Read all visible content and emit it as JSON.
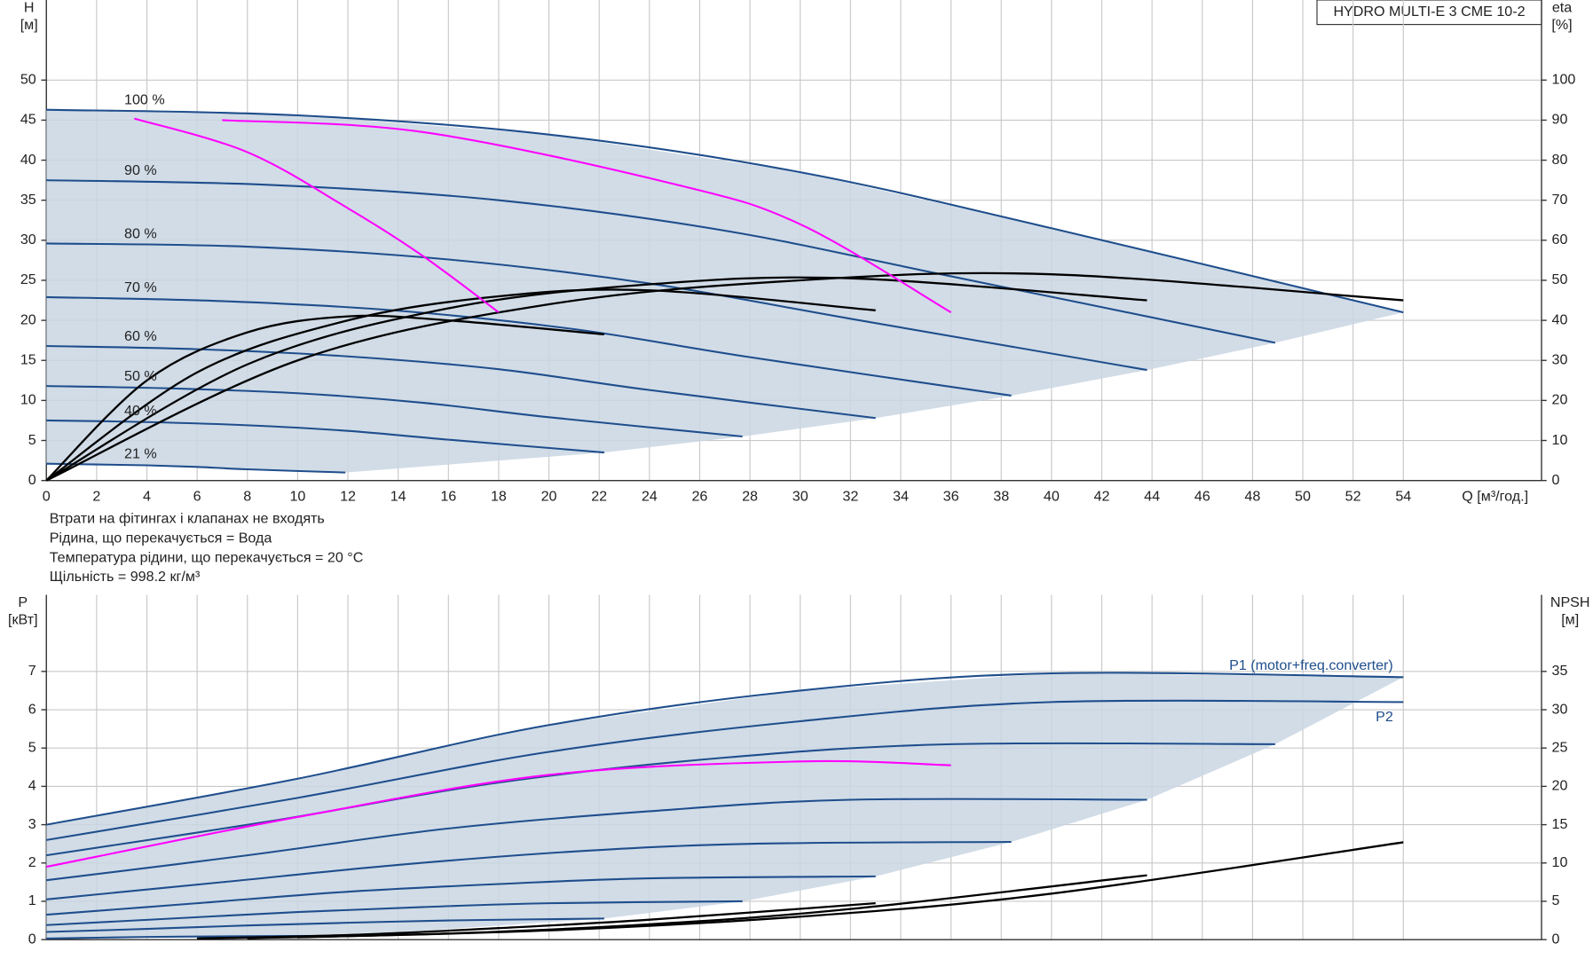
{
  "chart_data": [
    {
      "type": "line",
      "title": "HYDRO MULTI-E 3 CME 10-2",
      "ylabel": [
        "H",
        "[м]"
      ],
      "y2label": [
        "eta",
        "[%]"
      ],
      "xlabel": "Q [м³/год.]",
      "xlim": [
        0,
        59.5
      ],
      "ylim": [
        0,
        60
      ],
      "y2lim": [
        0,
        120
      ],
      "grid": true,
      "xticks": [
        0,
        2,
        4,
        6,
        8,
        10,
        12,
        14,
        16,
        18,
        20,
        22,
        24,
        26,
        28,
        30,
        32,
        34,
        36,
        38,
        40,
        42,
        44,
        46,
        48,
        50,
        52,
        54
      ],
      "yticks": [
        0,
        5,
        10,
        15,
        20,
        25,
        30,
        35,
        40,
        45,
        50
      ],
      "y2ticks": [
        0,
        10,
        20,
        30,
        40,
        50,
        60,
        70,
        80,
        90,
        100
      ],
      "series": [
        {
          "name": "100 %",
          "color": "#1f4e8c",
          "x": [
            0,
            10,
            20,
            30,
            40,
            54
          ],
          "values": [
            46.3,
            45.6,
            43.2,
            38.5,
            31.5,
            21.0
          ]
        },
        {
          "name": "90 %",
          "color": "#1f4e8c",
          "x": [
            0,
            9,
            18,
            27,
            36,
            48.9
          ],
          "values": [
            37.5,
            36.9,
            35.0,
            31.2,
            25.5,
            17.2
          ]
        },
        {
          "name": "80 %",
          "color": "#1f4e8c",
          "x": [
            0,
            8,
            16,
            24,
            32,
            43.8
          ],
          "values": [
            29.6,
            29.2,
            27.6,
            24.6,
            20.2,
            13.8
          ]
        },
        {
          "name": "70 %",
          "color": "#1f4e8c",
          "x": [
            0,
            7,
            14,
            21,
            28,
            38.4
          ],
          "values": [
            22.9,
            22.4,
            21.2,
            18.9,
            15.4,
            10.6
          ]
        },
        {
          "name": "60 %",
          "color": "#1f4e8c",
          "x": [
            0,
            6,
            12,
            18,
            24,
            33
          ],
          "values": [
            16.8,
            16.4,
            15.5,
            13.9,
            11.3,
            7.8
          ]
        },
        {
          "name": "50 %",
          "color": "#1f4e8c",
          "x": [
            0,
            5,
            10,
            15,
            20,
            27.7
          ],
          "values": [
            11.8,
            11.5,
            10.9,
            9.7,
            7.9,
            5.5
          ]
        },
        {
          "name": "40 %",
          "color": "#1f4e8c",
          "x": [
            0,
            4,
            8,
            12,
            16,
            22.2
          ],
          "values": [
            7.5,
            7.3,
            6.9,
            6.2,
            5.1,
            3.5
          ]
        },
        {
          "name": "21 %",
          "color": "#1f4e8c",
          "x": [
            0,
            2,
            4,
            6,
            8,
            11.9
          ],
          "values": [
            2.1,
            2.0,
            1.9,
            1.7,
            1.4,
            1.0
          ]
        },
        {
          "color": "#000000",
          "axis": "y2",
          "x": [
            0,
            10,
            20,
            30,
            40,
            54
          ],
          "values": [
            0,
            30,
            44,
            50,
            51.5,
            45
          ]
        },
        {
          "color": "#000000",
          "axis": "y2",
          "x": [
            0,
            8,
            16,
            24,
            32,
            43.8
          ],
          "values": [
            0,
            29,
            43,
            49,
            50.5,
            45
          ]
        },
        {
          "color": "#000000",
          "axis": "y2",
          "x": [
            0,
            6,
            12,
            18,
            24,
            33
          ],
          "values": [
            0,
            27,
            40,
            46,
            47.5,
            42.5
          ]
        },
        {
          "color": "#000000",
          "axis": "y2",
          "x": [
            0,
            4,
            8,
            12,
            16,
            22.2
          ],
          "values": [
            0,
            25,
            37,
            41,
            40,
            36.5
          ]
        },
        {
          "color": "#ff00ff",
          "x": [
            3.5,
            8,
            12,
            15,
            18
          ],
          "values": [
            45.2,
            41,
            34,
            28,
            21
          ]
        },
        {
          "color": "#ff00ff",
          "x": [
            7,
            15,
            25,
            30,
            36
          ],
          "values": [
            45,
            43.5,
            37,
            32,
            21
          ]
        }
      ]
    },
    {
      "type": "line",
      "notes": [
        "Втрати на фітингах і клапанах не входять",
        "Рідина, що перекачується = Вода",
        "Температура рідини, що перекачується = 20 °C",
        "Щільність = 998.2 кг/м³"
      ],
      "ylabel": [
        "P",
        "[кВт]"
      ],
      "y2label": [
        "NPSH",
        "[м]"
      ],
      "xlim": [
        0,
        59.5
      ],
      "ylim": [
        0,
        9
      ],
      "y2lim": [
        0,
        45
      ],
      "grid": true,
      "yticks": [
        0,
        1,
        2,
        3,
        4,
        5,
        6,
        7
      ],
      "y2ticks": [
        0,
        5,
        10,
        15,
        20,
        25,
        30,
        35
      ],
      "series": [
        {
          "name": "P1 (motor+freq.converter)",
          "color": "#1f4e8c",
          "x": [
            0,
            10,
            20,
            30,
            40,
            54
          ],
          "values": [
            3.0,
            4.2,
            5.6,
            6.5,
            6.95,
            6.85
          ]
        },
        {
          "name": "P2",
          "color": "#1f4e8c",
          "x": [
            0,
            10,
            20,
            30,
            40,
            54
          ],
          "values": [
            2.6,
            3.7,
            4.9,
            5.7,
            6.2,
            6.2
          ]
        },
        {
          "color": "#1f4e8c",
          "x": [
            0,
            9,
            18,
            27,
            36,
            48.9
          ],
          "values": [
            2.2,
            3.1,
            4.1,
            4.75,
            5.1,
            5.1
          ]
        },
        {
          "color": "#1f4e8c",
          "x": [
            0,
            8,
            16,
            24,
            32,
            43.8
          ],
          "values": [
            1.55,
            2.2,
            2.9,
            3.35,
            3.65,
            3.65
          ]
        },
        {
          "color": "#1f4e8c",
          "x": [
            0,
            7,
            14,
            21,
            28,
            38.4
          ],
          "values": [
            1.05,
            1.5,
            1.95,
            2.3,
            2.5,
            2.55
          ]
        },
        {
          "color": "#1f4e8c",
          "x": [
            0,
            6,
            12,
            18,
            24,
            33
          ],
          "values": [
            0.65,
            0.95,
            1.25,
            1.45,
            1.6,
            1.65
          ]
        },
        {
          "color": "#1f4e8c",
          "x": [
            0,
            5,
            10,
            15,
            20,
            27.7
          ],
          "values": [
            0.38,
            0.55,
            0.72,
            0.85,
            0.95,
            1.0
          ]
        },
        {
          "color": "#1f4e8c",
          "x": [
            0,
            4,
            8,
            12,
            16,
            22.2
          ],
          "values": [
            0.2,
            0.28,
            0.37,
            0.44,
            0.5,
            0.55
          ]
        },
        {
          "color": "#1f4e8c",
          "x": [
            0,
            2,
            4,
            6,
            8,
            11.9
          ],
          "values": [
            0.03,
            0.05,
            0.07,
            0.08,
            0.09,
            0.1
          ]
        },
        {
          "color": "#ff00ff",
          "x": [
            0,
            10,
            20,
            30,
            36
          ],
          "values": [
            1.9,
            3.2,
            4.3,
            4.65,
            4.55
          ]
        },
        {
          "color": "#000000",
          "axis": "y2",
          "x": [
            10,
            20,
            30,
            40,
            54
          ],
          "values": [
            0.3,
            1.2,
            3,
            6,
            12.7
          ]
        },
        {
          "color": "#000000",
          "axis": "y2",
          "x": [
            8,
            16,
            24,
            32,
            43.8
          ],
          "values": [
            0.2,
            0.8,
            2,
            4,
            8.4
          ]
        },
        {
          "color": "#000000",
          "axis": "y2",
          "x": [
            6,
            12,
            18,
            24,
            33
          ],
          "values": [
            0.15,
            0.6,
            1.5,
            2.6,
            4.75
          ]
        }
      ]
    }
  ]
}
